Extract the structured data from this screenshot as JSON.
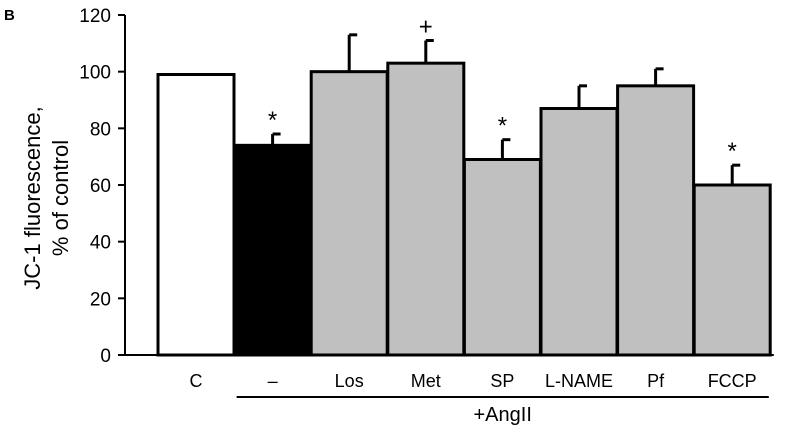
{
  "panel_label": "B",
  "chart_data": {
    "type": "bar",
    "categories": [
      "C",
      "–",
      "Los",
      "Met",
      "SP",
      "L-NAME",
      "Pf",
      "FCCP"
    ],
    "values": [
      99,
      74,
      100,
      103,
      69,
      87,
      95,
      60
    ],
    "errors": [
      0,
      4,
      13,
      8,
      7,
      8,
      6,
      7
    ],
    "bar_colors": [
      "#ffffff",
      "#000000",
      "#c0c0c0",
      "#c0c0c0",
      "#c0c0c0",
      "#c0c0c0",
      "#c0c0c0",
      "#c0c0c0"
    ],
    "significance": [
      "",
      "*",
      "",
      "+",
      "*",
      "",
      "",
      "*"
    ],
    "ylabel_line1": "JC-1 fluorescence,",
    "ylabel_line2": "% of control",
    "ylim": [
      0,
      120
    ],
    "yticks": [
      0,
      20,
      40,
      60,
      80,
      100,
      120
    ],
    "group_label": "+AngII",
    "grid": false
  }
}
